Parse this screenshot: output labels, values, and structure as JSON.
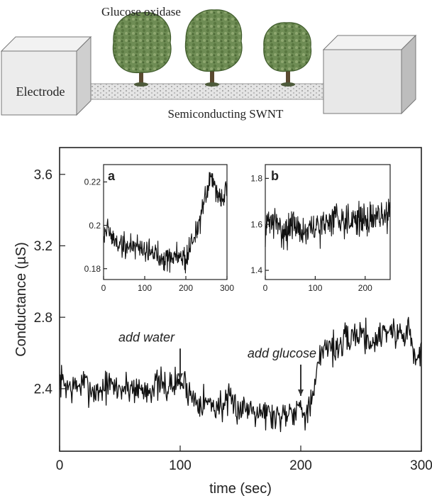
{
  "diagram": {
    "enzyme_label": "Glucose oxidase",
    "electrode_label": "Electrode",
    "tube_label": "Semiconducting SWNT"
  },
  "chart_data": [
    {
      "type": "line",
      "xlabel": "time (sec)",
      "ylabel": "Conductance (µS)",
      "xlim": [
        0,
        300
      ],
      "ylim": [
        2.05,
        3.75
      ],
      "xticks": [
        0,
        100,
        200,
        300
      ],
      "yticks": [
        2.4,
        2.8,
        3.2,
        3.6
      ],
      "grid": false,
      "annotations": [
        {
          "text": "add water",
          "x": 100,
          "y": 2.45
        },
        {
          "text": "add glucose",
          "x": 200,
          "y": 2.36
        }
      ],
      "series": [
        {
          "x": [
            0,
            10,
            20,
            30,
            40,
            50,
            60,
            70,
            80,
            90,
            100,
            105,
            110,
            120,
            130,
            140,
            150,
            160,
            170,
            180,
            190,
            200,
            205,
            210,
            215,
            220,
            230,
            240,
            250,
            260,
            270,
            280,
            290,
            295,
            300
          ],
          "values": [
            2.45,
            2.4,
            2.43,
            2.38,
            2.42,
            2.4,
            2.41,
            2.39,
            2.42,
            2.41,
            2.44,
            2.42,
            2.35,
            2.33,
            2.3,
            2.32,
            2.29,
            2.3,
            2.27,
            2.24,
            2.28,
            2.3,
            2.27,
            2.33,
            2.55,
            2.66,
            2.62,
            2.68,
            2.72,
            2.65,
            2.74,
            2.7,
            2.73,
            2.55,
            2.6
          ]
        }
      ]
    },
    {
      "type": "line",
      "label": "a",
      "xlim": [
        0,
        300
      ],
      "ylim": [
        0.175,
        0.228
      ],
      "xticks": [
        0,
        100,
        200,
        300
      ],
      "yticks": [
        0.18,
        0.2,
        0.22
      ],
      "series": [
        {
          "x": [
            0,
            10,
            20,
            40,
            60,
            80,
            100,
            120,
            140,
            160,
            180,
            195,
            200,
            210,
            220,
            230,
            240,
            250,
            260,
            265,
            270,
            280,
            290,
            300
          ],
          "values": [
            0.196,
            0.199,
            0.194,
            0.191,
            0.19,
            0.191,
            0.189,
            0.187,
            0.186,
            0.185,
            0.186,
            0.185,
            0.184,
            0.19,
            0.195,
            0.2,
            0.206,
            0.214,
            0.221,
            0.223,
            0.218,
            0.215,
            0.211,
            0.219
          ]
        }
      ]
    },
    {
      "type": "line",
      "label": "b",
      "xlim": [
        0,
        250
      ],
      "ylim": [
        1.36,
        1.86
      ],
      "xticks": [
        0,
        100,
        200
      ],
      "yticks": [
        1.4,
        1.6,
        1.8
      ],
      "series": [
        {
          "x": [
            0,
            10,
            20,
            40,
            60,
            80,
            100,
            120,
            140,
            160,
            180,
            200,
            220,
            235,
            250
          ],
          "values": [
            1.58,
            1.62,
            1.6,
            1.57,
            1.6,
            1.56,
            1.58,
            1.6,
            1.64,
            1.62,
            1.63,
            1.61,
            1.64,
            1.62,
            1.66
          ]
        }
      ]
    }
  ]
}
